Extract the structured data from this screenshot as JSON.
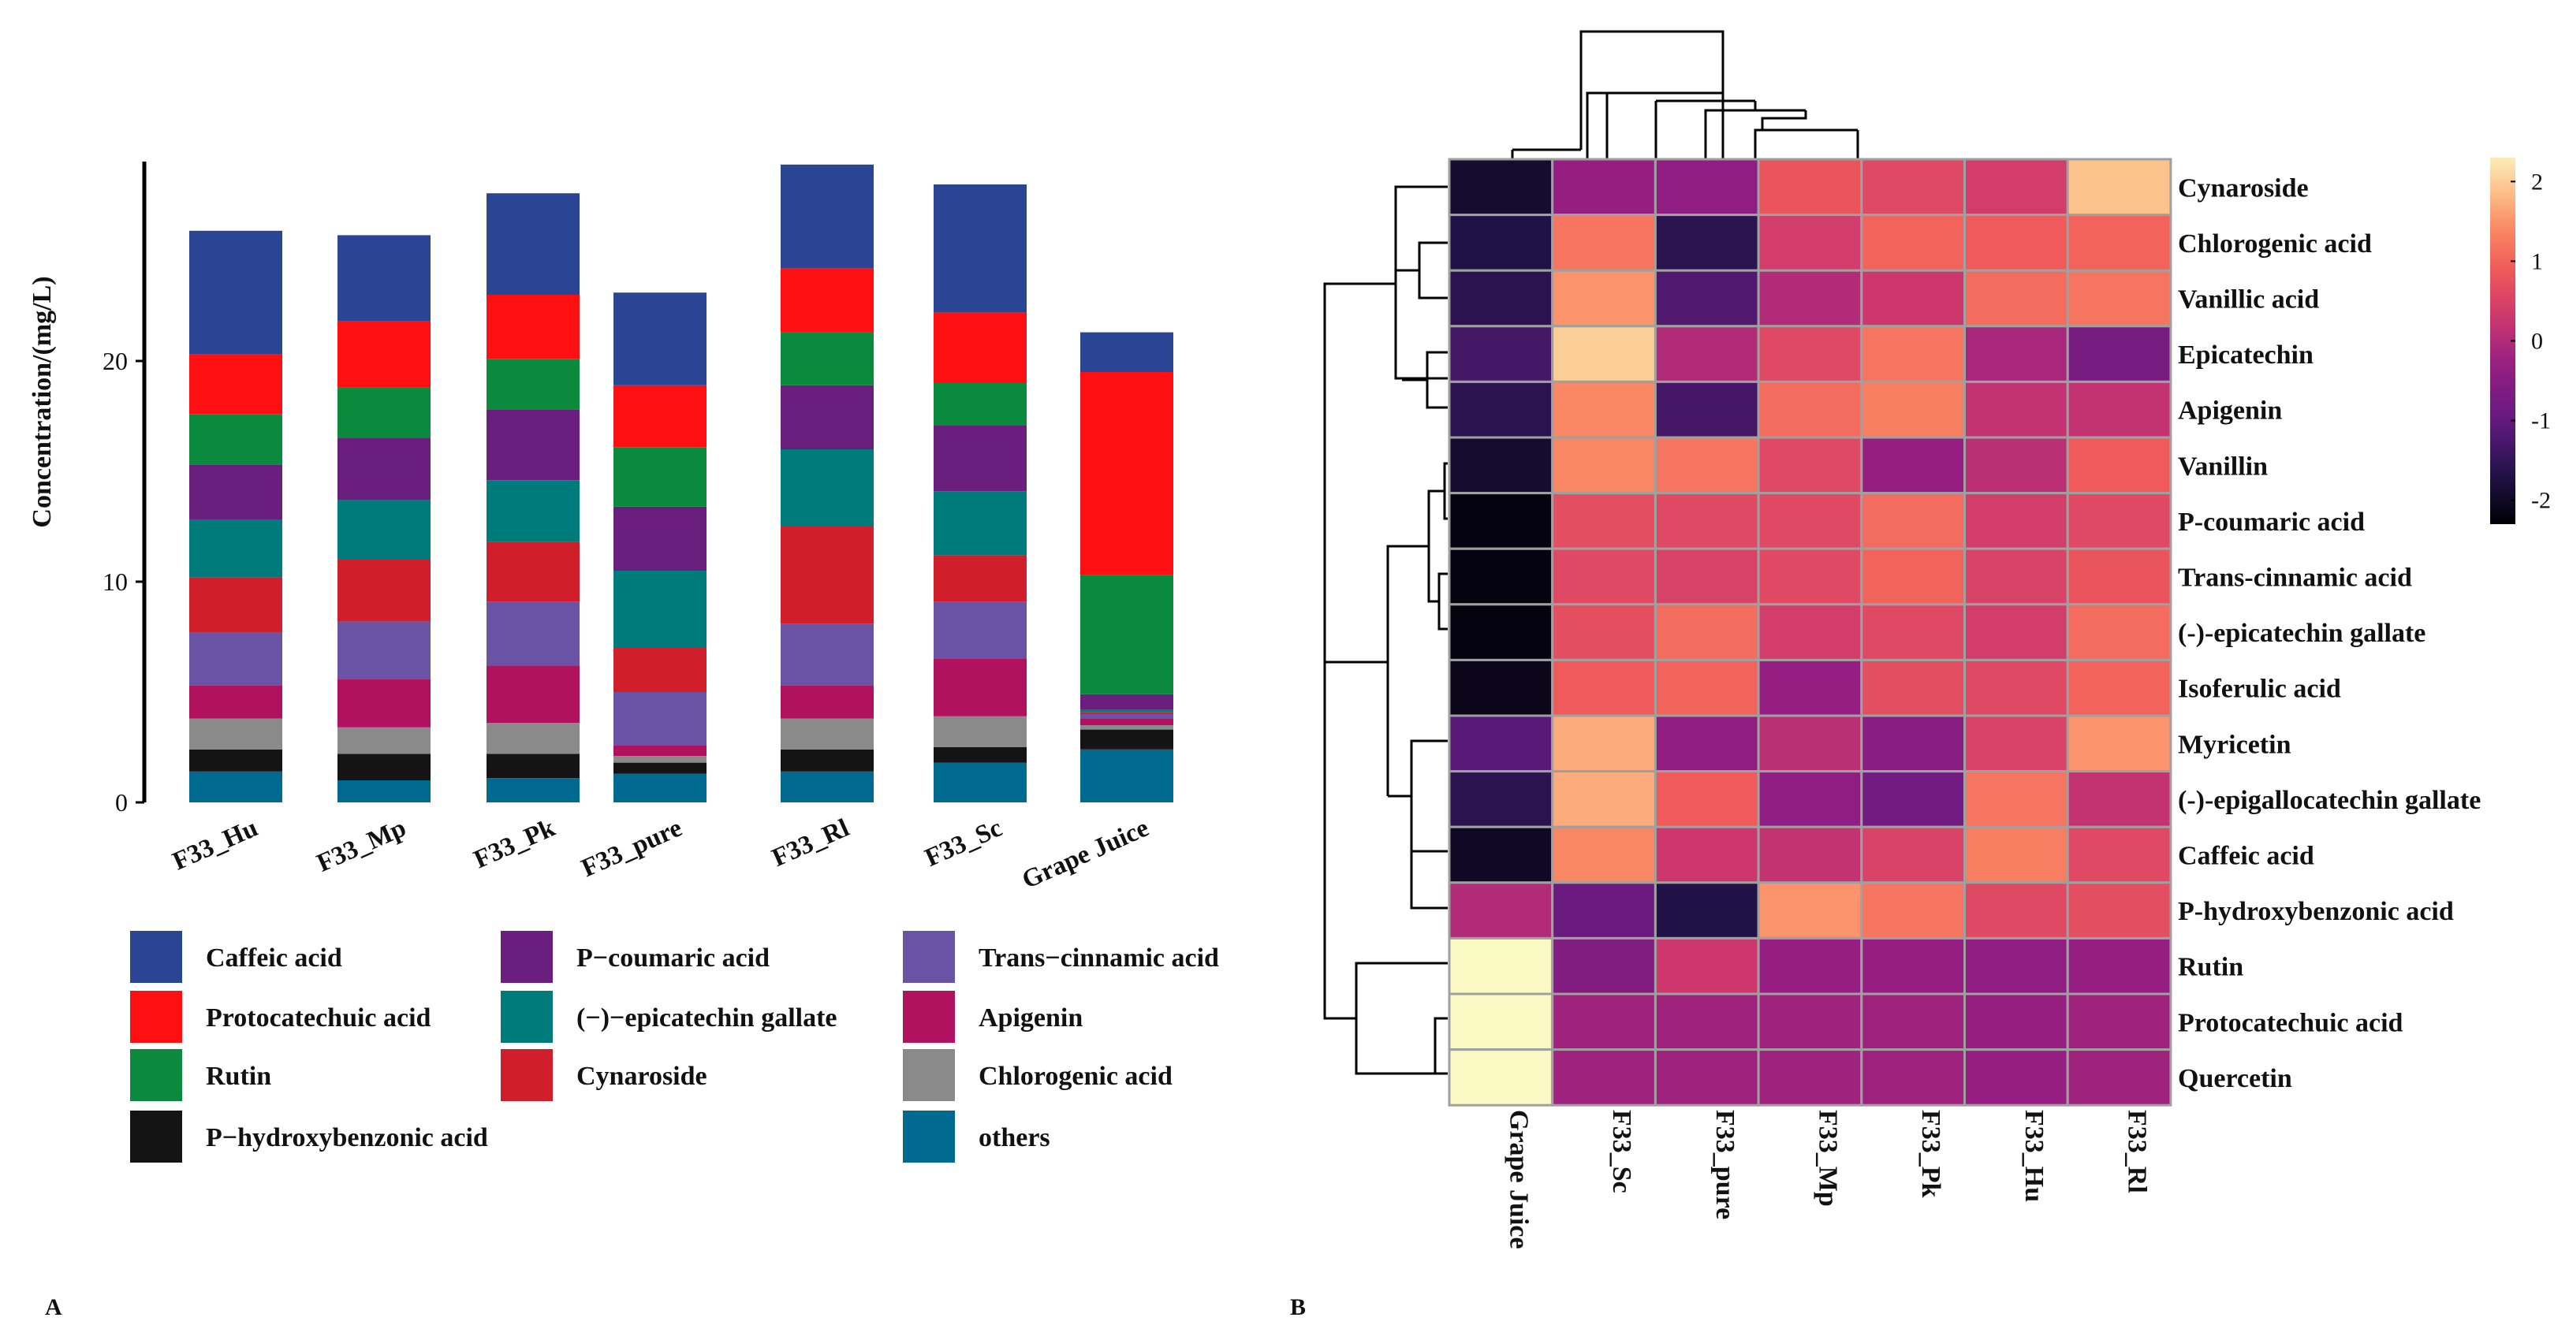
{
  "panel_labels": {
    "a": "A",
    "b": "B"
  },
  "chart_data": [
    {
      "type": "bar",
      "stacked": true,
      "ylabel": "Concentration/(mg/L)",
      "xlabel": "",
      "ylim": [
        0,
        29
      ],
      "yticks": [
        0,
        10,
        20
      ],
      "categories": [
        "F33_Hu",
        "F33_Mp",
        "F33_Pk",
        "F33_pure",
        "F33_Rl",
        "F33_Sc",
        "Grape Juice"
      ],
      "series": [
        {
          "name": "others",
          "color": "#00698f",
          "values": [
            1.4,
            1.0,
            1.1,
            1.3,
            1.4,
            1.8,
            2.4
          ]
        },
        {
          "name": "P−hydroxybenzonic acid",
          "color": "#141414",
          "values": [
            1.0,
            1.2,
            1.1,
            0.5,
            1.0,
            0.7,
            0.9
          ]
        },
        {
          "name": "Chlorogenic acid",
          "color": "#8a8a8a",
          "values": [
            1.4,
            1.2,
            1.4,
            0.3,
            1.4,
            1.4,
            0.2
          ]
        },
        {
          "name": "Apigenin",
          "color": "#b0125f",
          "values": [
            1.5,
            2.2,
            2.6,
            0.5,
            1.5,
            2.6,
            0.3
          ]
        },
        {
          "name": "Trans−cinnamic acid",
          "color": "#6a52a5",
          "values": [
            2.4,
            2.6,
            2.9,
            2.4,
            2.8,
            2.6,
            0.2
          ]
        },
        {
          "name": "Cynaroside",
          "color": "#d01f2a",
          "values": [
            2.5,
            2.8,
            2.7,
            2.0,
            4.4,
            2.1,
            0.1
          ]
        },
        {
          "name": "(−)−epicatechin gallate",
          "color": "#007b7b",
          "values": [
            2.6,
            2.7,
            2.8,
            3.5,
            3.5,
            2.9,
            0.1
          ]
        },
        {
          "name": "P−coumaric acid",
          "color": "#6a1e7e",
          "values": [
            2.5,
            2.8,
            3.2,
            2.9,
            2.9,
            3.0,
            0.7
          ]
        },
        {
          "name": "Rutin",
          "color": "#0b8a3e",
          "values": [
            2.3,
            2.3,
            2.3,
            2.7,
            2.4,
            1.9,
            5.4
          ]
        },
        {
          "name": "Protocatechuic acid",
          "color": "#fe0f11",
          "values": [
            2.7,
            3.0,
            2.9,
            2.8,
            2.9,
            3.2,
            9.2
          ]
        },
        {
          "name": "Caffeic acid",
          "color": "#2b4595",
          "values": [
            5.6,
            3.9,
            4.6,
            4.2,
            4.7,
            5.8,
            1.8
          ]
        }
      ],
      "legend": {
        "placement": "bottom",
        "columns": [
          [
            "Caffeic acid",
            "Protocatechuic acid",
            "Rutin",
            "P−hydroxybenzonic acid"
          ],
          [
            "P−coumaric acid",
            "(−)−epicatechin gallate",
            "Cynaroside"
          ],
          [
            "Trans−cinnamic acid",
            "Apigenin",
            "Chlorogenic acid",
            "others"
          ]
        ]
      }
    },
    {
      "type": "heatmap",
      "clustered": true,
      "columns": [
        "Grape Juice",
        "F33_Sc",
        "F33_pure",
        "F33_Mp",
        "F33_Pk",
        "F33_Hu",
        "F33_Rl"
      ],
      "rows": [
        "Cynaroside",
        "Chlorogenic acid",
        "Vanillic acid",
        "Epicatechin",
        "Apigenin",
        "Vanillin",
        "P-coumaric acid",
        "Trans-cinnamic acid",
        "(-)-epicatechin gallate",
        "Isoferulic acid",
        "Myricetin",
        "(-)-epigallocatechin gallate",
        "Caffeic acid",
        "P-hydroxybenzonic acid",
        "Rutin",
        "Protocatechuic acid",
        "Quercetin"
      ],
      "values": [
        [
          -1.9,
          -0.3,
          -0.4,
          0.8,
          0.6,
          0.4,
          1.9
        ],
        [
          -1.7,
          1.2,
          -1.6,
          0.4,
          1.0,
          0.9,
          1.0
        ],
        [
          -1.6,
          1.5,
          -1.2,
          0.0,
          0.3,
          1.1,
          1.2
        ],
        [
          -1.3,
          2.0,
          0.0,
          0.6,
          1.2,
          -0.1,
          -0.7
        ],
        [
          -1.6,
          1.4,
          -1.3,
          1.1,
          1.3,
          0.2,
          0.2
        ],
        [
          -1.9,
          1.4,
          1.2,
          0.6,
          -0.3,
          0.1,
          0.9
        ],
        [
          -2.2,
          0.7,
          0.6,
          0.6,
          1.1,
          0.4,
          0.6
        ],
        [
          -2.2,
          0.6,
          0.5,
          0.6,
          1.0,
          0.5,
          0.8
        ],
        [
          -2.2,
          0.7,
          1.1,
          0.4,
          0.6,
          0.4,
          1.1
        ],
        [
          -2.1,
          0.9,
          1.0,
          -0.3,
          0.7,
          0.6,
          1.0
        ],
        [
          -1.1,
          1.7,
          -0.4,
          0.1,
          -0.5,
          0.5,
          1.5
        ],
        [
          -1.6,
          1.7,
          0.9,
          -0.4,
          -0.8,
          1.2,
          0.2
        ],
        [
          -2.0,
          1.4,
          0.3,
          0.2,
          0.5,
          1.3,
          0.6
        ],
        [
          0.0,
          -0.9,
          -1.7,
          1.5,
          1.2,
          0.6,
          0.7
        ],
        [
          2.4,
          -0.6,
          0.3,
          -0.3,
          -0.3,
          -0.4,
          -0.3
        ],
        [
          2.4,
          -0.2,
          -0.2,
          -0.2,
          -0.2,
          -0.3,
          -0.2
        ],
        [
          2.4,
          -0.2,
          -0.2,
          -0.2,
          -0.2,
          -0.3,
          -0.2
        ]
      ],
      "colorbar": {
        "ticks": [
          2,
          1,
          0,
          -1,
          -2
        ],
        "range": [
          -2.3,
          2.3
        ]
      }
    }
  ]
}
